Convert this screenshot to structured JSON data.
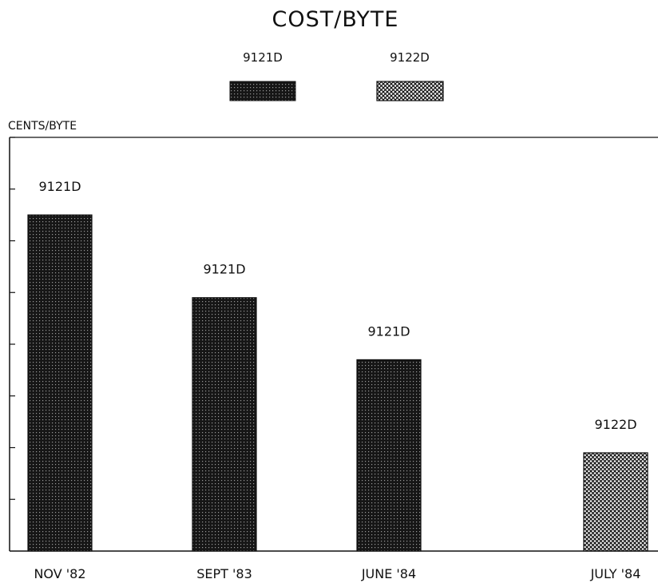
{
  "chart_data": {
    "type": "bar",
    "title": "COST/BYTE",
    "ylabel": "CENTS/BYTE",
    "xlabel": "",
    "categories": [
      "NOV '82",
      "SEPT '83",
      "JUNE '84",
      "JULY '84"
    ],
    "bar_labels": [
      "9121D",
      "9121D",
      "9121D",
      "9122D"
    ],
    "values": [
      6.5,
      4.9,
      3.7,
      1.9
    ],
    "bar_series": [
      "9121D",
      "9121D",
      "9121D",
      "9122D"
    ],
    "ylim": [
      0,
      8
    ],
    "yticks": [
      1,
      2,
      3,
      4,
      5,
      6,
      7,
      8
    ],
    "y_tick_labels_shown": false,
    "grid": false,
    "legend_position": "top-center",
    "series": [
      {
        "name": "9121D",
        "pattern": "dense-dotted"
      },
      {
        "name": "9122D",
        "pattern": "crosshatch"
      }
    ],
    "colors": {
      "ink": "#111111",
      "background": "#ffffff"
    }
  }
}
